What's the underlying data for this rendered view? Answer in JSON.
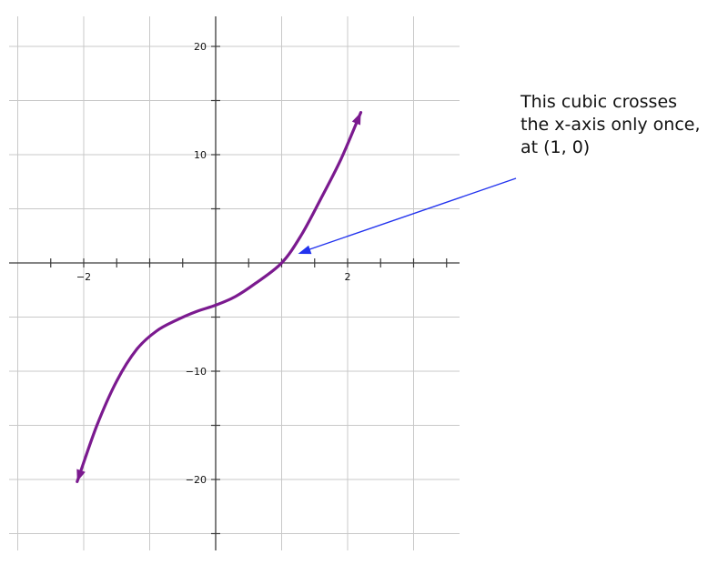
{
  "chart_data": {
    "type": "line",
    "title": "",
    "xlabel": "",
    "ylabel": "",
    "xlim": [
      -3.0,
      3.7
    ],
    "ylim": [
      -26,
      23
    ],
    "grid": true,
    "grid_x_step": 1,
    "grid_y_step": 5,
    "x_ticks": [
      -2,
      2
    ],
    "y_ticks": [
      20,
      10,
      -10,
      -20
    ],
    "minor_x_ticks": [
      -2.5,
      -2,
      -1.5,
      -1,
      -0.5,
      0.5,
      1,
      1.5,
      2,
      2.5,
      3,
      3.5
    ],
    "minor_y_ticks": [
      20,
      15,
      10,
      5,
      -5,
      -10,
      -15,
      -20,
      -25
    ],
    "series": [
      {
        "color": "#7b1a8f",
        "arrows": "both-ends",
        "x": [
          -2.1,
          -1.8,
          -1.5,
          -1.2,
          -0.9,
          -0.6,
          -0.3,
          0,
          0.3,
          0.6,
          1,
          1.3,
          1.6,
          1.9,
          2.2
        ],
        "y": [
          -20.2,
          -15.0,
          -10.9,
          -8.0,
          -6.3,
          -5.3,
          -4.5,
          -3.9,
          -3.1,
          -1.9,
          0,
          2.6,
          6.0,
          9.6,
          13.9
        ]
      }
    ],
    "annotation": {
      "lines": [
        "This cubic crosses",
        "the x-axis only once,",
        "at (1, 0)"
      ],
      "points_to": [
        1,
        0
      ],
      "arrow_color": "#2233ee"
    }
  }
}
